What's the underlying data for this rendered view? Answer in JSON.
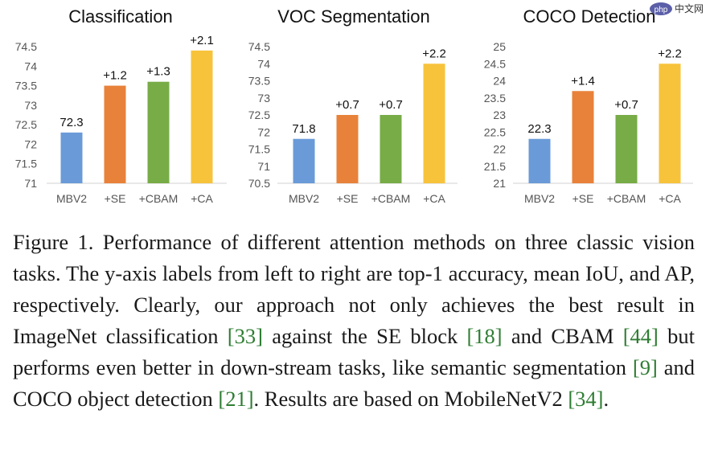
{
  "chart_data": [
    {
      "type": "bar",
      "title": "Classification",
      "categories": [
        "MBV2",
        "+SE",
        "+CBAM",
        "+CA"
      ],
      "values": [
        72.3,
        73.5,
        73.6,
        74.4
      ],
      "data_labels": [
        "72.3",
        "+1.2",
        "+1.3",
        "+2.1"
      ],
      "yticks": [
        "71",
        "71.5",
        "72",
        "72.5",
        "73",
        "73.5",
        "74",
        "74.5"
      ],
      "ylim": [
        71,
        74.5
      ],
      "xlabel": "",
      "ylabel": "",
      "grid": false
    },
    {
      "type": "bar",
      "title": "VOC Segmentation",
      "categories": [
        "MBV2",
        "+SE",
        "+CBAM",
        "+CA"
      ],
      "values": [
        71.8,
        72.5,
        72.5,
        74.0
      ],
      "data_labels": [
        "71.8",
        "+0.7",
        "+0.7",
        "+2.2"
      ],
      "yticks": [
        "70.5",
        "71",
        "71.5",
        "72",
        "72.5",
        "73",
        "73.5",
        "74",
        "74.5"
      ],
      "ylim": [
        70.5,
        74.5
      ],
      "xlabel": "",
      "ylabel": "",
      "grid": false
    },
    {
      "type": "bar",
      "title": "COCO Detection",
      "categories": [
        "MBV2",
        "+SE",
        "+CBAM",
        "+CA"
      ],
      "values": [
        22.3,
        23.7,
        23.0,
        24.5
      ],
      "data_labels": [
        "22.3",
        "+1.4",
        "+0.7",
        "+2.2"
      ],
      "yticks": [
        "21",
        "21.5",
        "22",
        "22.5",
        "23",
        "23.5",
        "24",
        "24.5",
        "25"
      ],
      "ylim": [
        21,
        25
      ],
      "xlabel": "",
      "ylabel": "",
      "grid": false
    }
  ],
  "colors": [
    "#6a9bd8",
    "#e8823a",
    "#77ac47",
    "#f7c33b"
  ],
  "watermark": {
    "logo": "php",
    "text": "中文网"
  },
  "caption": {
    "figure_label": "Figure 1.",
    "seg1": " Performance of different attention methods on three classic vision tasks. The y-axis labels from left to right are top-1 accuracy, mean IoU, and AP, respectively. Clearly, our approach not only achieves the best result in ImageNet classification ",
    "ref1": "[33]",
    "seg2": " against the SE block ",
    "ref2": "[18]",
    "seg3": " and CBAM ",
    "ref3": "[44]",
    "seg4": " but performs even better in down-stream tasks, like semantic segmentation ",
    "ref4": "[9]",
    "seg5": " and COCO object detection ",
    "ref5": "[21]",
    "seg6": ". Results are based on MobileNetV2 ",
    "ref6": "[34]",
    "seg7": "."
  }
}
